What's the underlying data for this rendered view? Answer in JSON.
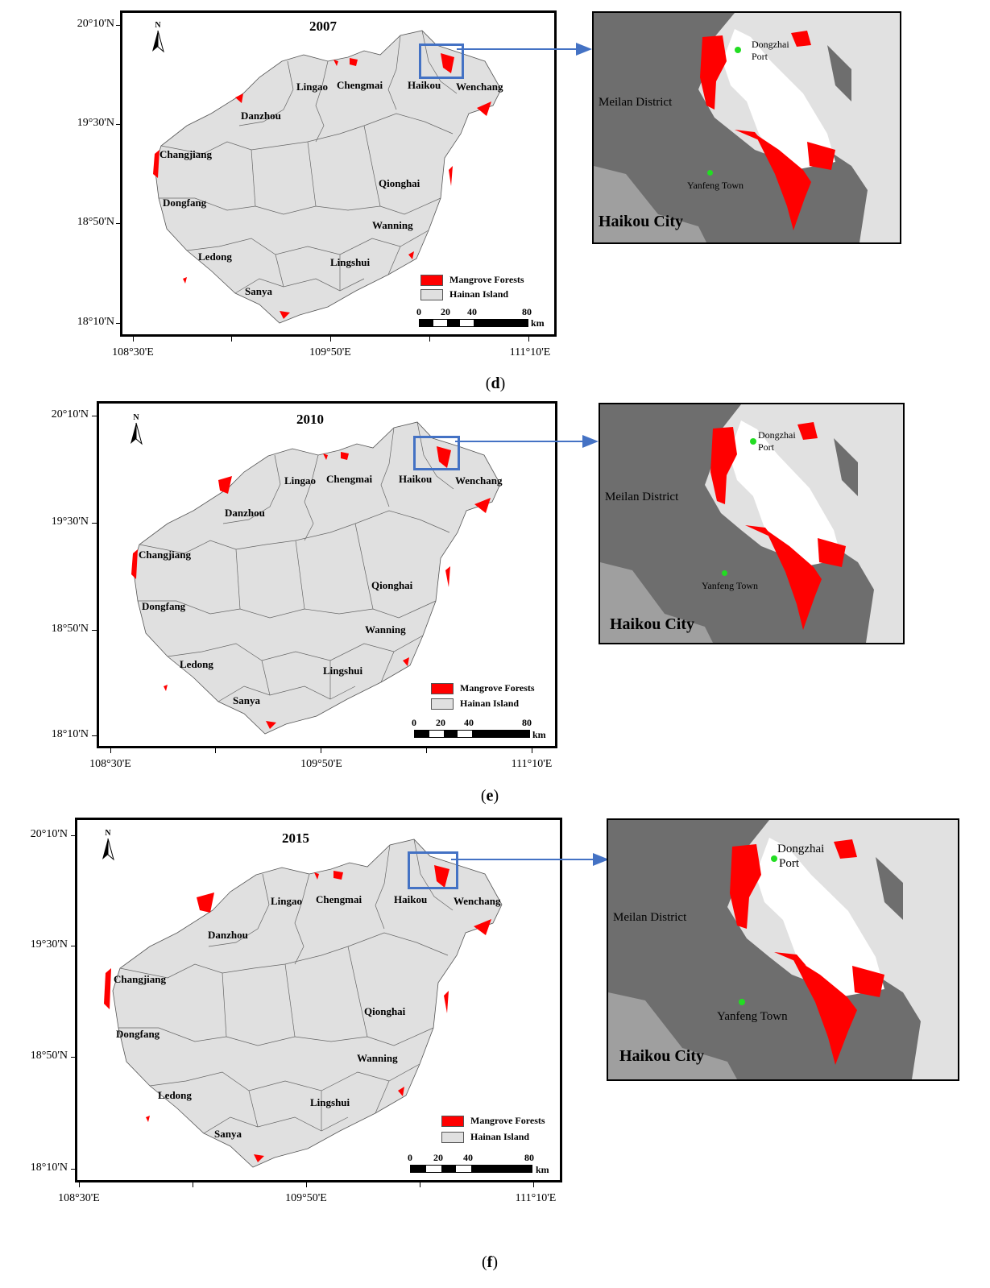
{
  "colors": {
    "mangrove": "#ff0000",
    "island": "#e0e0e0",
    "inset_dark": "#6e6e6e",
    "inset_light": "#e1e1e1",
    "water": "#ffffff",
    "pointer": "#4472c4",
    "town_dot": "#22dd22"
  },
  "icons": {
    "north_arrow": "north-arrow-icon"
  },
  "panels": [
    {
      "caption_letter": "d",
      "year": "2007",
      "lat_labels": [
        "20°10'N",
        "19°30'N",
        "18°50'N",
        "18°10'N"
      ],
      "lon_labels": [
        "108°30'E",
        "109°50'E",
        "111°10'E"
      ],
      "places": {
        "lingao": "Lingao",
        "chengmai": "Chengmai",
        "haikou": "Haikou",
        "wenchang": "Wenchang",
        "danzhou": "Danzhou",
        "changjiang": "Changjiang",
        "qionghai": "Qionghai",
        "dongfang": "Dongfang",
        "wanning": "Wanning",
        "ledong": "Ledong",
        "lingshui": "Lingshui",
        "sanya": "Sanya"
      },
      "legend": {
        "mangrove": "Mangrove Forests",
        "island": "Hainan Island"
      },
      "scale": {
        "ticks": [
          "0",
          "20",
          "40",
          "80"
        ],
        "unit": "km"
      },
      "north": "N",
      "inset": {
        "port": "Dongzhai",
        "port2": "Port",
        "district": "Meilan District",
        "town": "Yanfeng Town",
        "city": "Haikou City"
      }
    },
    {
      "caption_letter": "e",
      "year": "2010",
      "lat_labels": [
        "20°10'N",
        "19°30'N",
        "18°50'N",
        "18°10'N"
      ],
      "lon_labels": [
        "108°30'E",
        "109°50'E",
        "111°10'E"
      ],
      "places": {
        "lingao": "Lingao",
        "chengmai": "Chengmai",
        "haikou": "Haikou",
        "wenchang": "Wenchang",
        "danzhou": "Danzhou",
        "changjiang": "Changjiang",
        "qionghai": "Qionghai",
        "dongfang": "Dongfang",
        "wanning": "Wanning",
        "ledong": "Ledong",
        "lingshui": "Lingshui",
        "sanya": "Sanya"
      },
      "legend": {
        "mangrove": "Mangrove Forests",
        "island": "Hainan Island"
      },
      "scale": {
        "ticks": [
          "0",
          "20",
          "40",
          "80"
        ],
        "unit": "km"
      },
      "north": "N",
      "inset": {
        "port": "Dongzhai",
        "port2": "Port",
        "district": "Meilan District",
        "town": "Yanfeng Town",
        "city": "Haikou City"
      }
    },
    {
      "caption_letter": "f",
      "year": "2015",
      "lat_labels": [
        "20°10'N",
        "19°30'N",
        "18°50'N",
        "18°10'N"
      ],
      "lon_labels": [
        "108°30'E",
        "109°50'E",
        "111°10'E"
      ],
      "places": {
        "lingao": "Lingao",
        "chengmai": "Chengmai",
        "haikou": "Haikou",
        "wenchang": "Wenchang",
        "danzhou": "Danzhou",
        "changjiang": "Changjiang",
        "qionghai": "Qionghai",
        "dongfang": "Dongfang",
        "wanning": "Wanning",
        "ledong": "Ledong",
        "lingshui": "Lingshui",
        "sanya": "Sanya"
      },
      "legend": {
        "mangrove": "Mangrove Forests",
        "island": "Hainan Island"
      },
      "scale": {
        "ticks": [
          "0",
          "20",
          "40",
          "80"
        ],
        "unit": "km"
      },
      "north": "N",
      "inset": {
        "port": "Dongzhai",
        "port2": "Port",
        "district": "Meilan District",
        "town": "Yanfeng Town",
        "city": "Haikou City"
      }
    }
  ]
}
